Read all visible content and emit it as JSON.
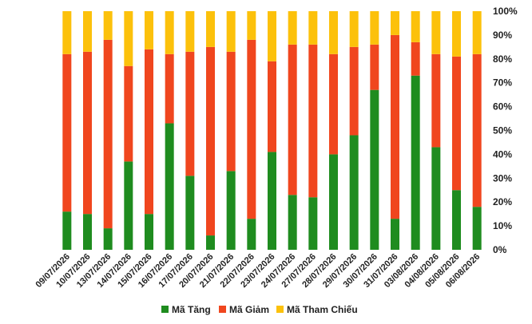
{
  "chart_data": {
    "type": "bar",
    "stacked": true,
    "orientation": "vertical",
    "categories": [
      "09/07/2026",
      "10/07/2026",
      "13/07/2026",
      "14/07/2026",
      "15/07/2026",
      "16/07/2026",
      "17/07/2026",
      "20/07/2026",
      "21/07/2026",
      "22/07/2026",
      "23/07/2026",
      "24/07/2026",
      "27/07/2026",
      "28/07/2026",
      "29/07/2026",
      "30/07/2026",
      "31/07/2026",
      "03/08/2026",
      "04/08/2026",
      "05/08/2026",
      "06/08/2026"
    ],
    "series": [
      {
        "name": "Mã Tăng",
        "color": "#1f8c1f",
        "values": [
          16,
          15,
          9,
          37,
          15,
          53,
          31,
          6,
          33,
          13,
          41,
          23,
          22,
          40,
          48,
          67,
          13,
          73,
          43,
          25,
          18
        ]
      },
      {
        "name": "Mã Giảm",
        "color": "#f0461e",
        "values": [
          66,
          68,
          79,
          40,
          69,
          29,
          52,
          79,
          50,
          75,
          38,
          63,
          64,
          42,
          37,
          19,
          77,
          14,
          39,
          56,
          64
        ]
      },
      {
        "name": "Mã Tham Chiếu",
        "color": "#fcc10b",
        "values": [
          18,
          17,
          12,
          23,
          16,
          18,
          17,
          15,
          17,
          12,
          21,
          14,
          14,
          18,
          15,
          14,
          10,
          13,
          18,
          19,
          18
        ]
      }
    ],
    "yticks": [
      "0%",
      "10%",
      "20%",
      "30%",
      "40%",
      "50%",
      "60%",
      "70%",
      "80%",
      "90%",
      "100%"
    ],
    "ylim": [
      0,
      100
    ],
    "y_axis_position": "right",
    "grid": false,
    "legend_position": "bottom"
  }
}
